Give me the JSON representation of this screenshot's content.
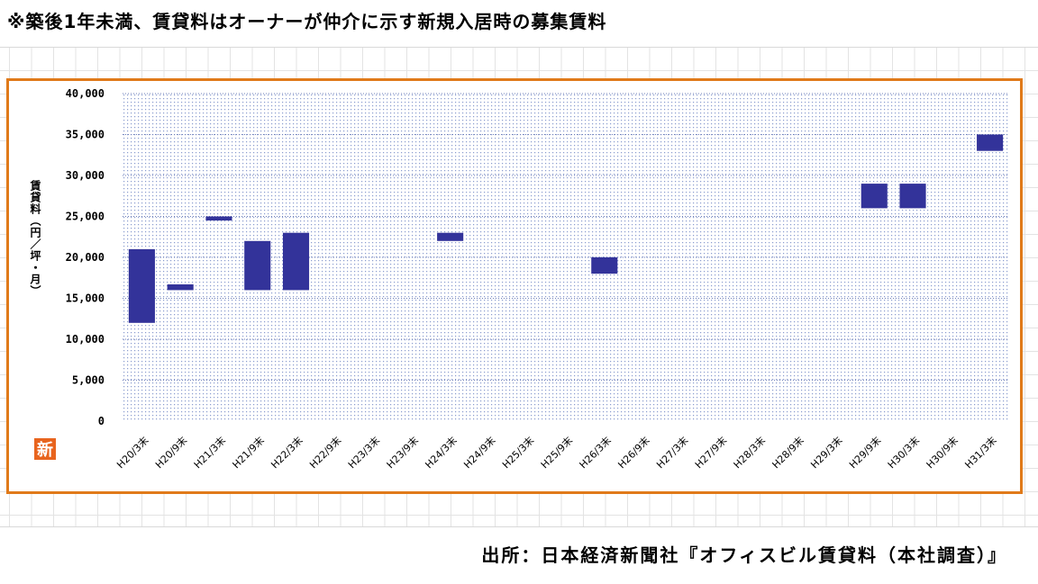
{
  "note": "※築後1年未満、賃貸料はオーナーが仲介に示す新規入居時の募集賃料",
  "source": "出所：日本経済新聞社『オフィスビル賃貸料（本社調査）』",
  "badge": "新",
  "colors": {
    "bar": "#33339a",
    "frame": "#e07a1a",
    "plot_dots": "#8a9ccf"
  },
  "chart_data": {
    "type": "bar",
    "subtype": "floating-range",
    "title": "",
    "ylabel": "賃貸料（円／坪・月）",
    "xlabel": "",
    "ylim": [
      0,
      40000
    ],
    "yticks": [
      0,
      5000,
      10000,
      15000,
      20000,
      25000,
      30000,
      35000,
      40000
    ],
    "ytick_labels": [
      "0",
      "5,000",
      "10,000",
      "15,000",
      "20,000",
      "25,000",
      "30,000",
      "35,000",
      "40,000"
    ],
    "grid": true,
    "categories": [
      "H20/3末",
      "H20/9末",
      "H21/3末",
      "H21/9末",
      "H22/3末",
      "H22/9末",
      "H23/3末",
      "H23/9末",
      "H24/3末",
      "H24/9末",
      "H25/3末",
      "H25/9末",
      "H26/3末",
      "H26/9末",
      "H27/3末",
      "H27/9末",
      "H28/3末",
      "H28/9末",
      "H29/3末",
      "H29/9末",
      "H30/3末",
      "H30/9末",
      "H31/3末"
    ],
    "low": [
      12000,
      16000,
      24500,
      16000,
      16000,
      null,
      null,
      null,
      22000,
      null,
      null,
      null,
      18000,
      null,
      null,
      null,
      null,
      null,
      null,
      26000,
      26000,
      null,
      33000
    ],
    "high": [
      21000,
      16700,
      25000,
      22000,
      23000,
      null,
      null,
      null,
      23000,
      null,
      null,
      null,
      20000,
      null,
      null,
      null,
      null,
      null,
      null,
      29000,
      29000,
      null,
      35000
    ]
  }
}
